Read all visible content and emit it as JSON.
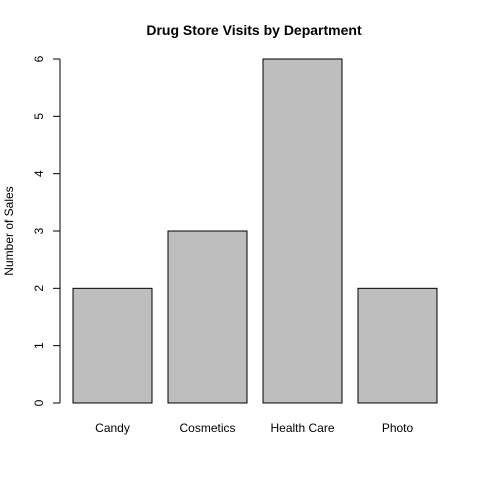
{
  "chart_data": {
    "type": "bar",
    "title": "Drug Store Visits by Department",
    "xlabel": "",
    "ylabel": "Number of Sales",
    "categories": [
      "Candy",
      "Cosmetics",
      "Health Care",
      "Photo"
    ],
    "values": [
      2,
      3,
      6,
      2
    ],
    "ylim": [
      0,
      6
    ],
    "yticks": [
      0,
      1,
      2,
      3,
      4,
      5,
      6
    ],
    "grid": false,
    "bar_color": "#bebebe",
    "bar_edge_color": "#000000"
  }
}
